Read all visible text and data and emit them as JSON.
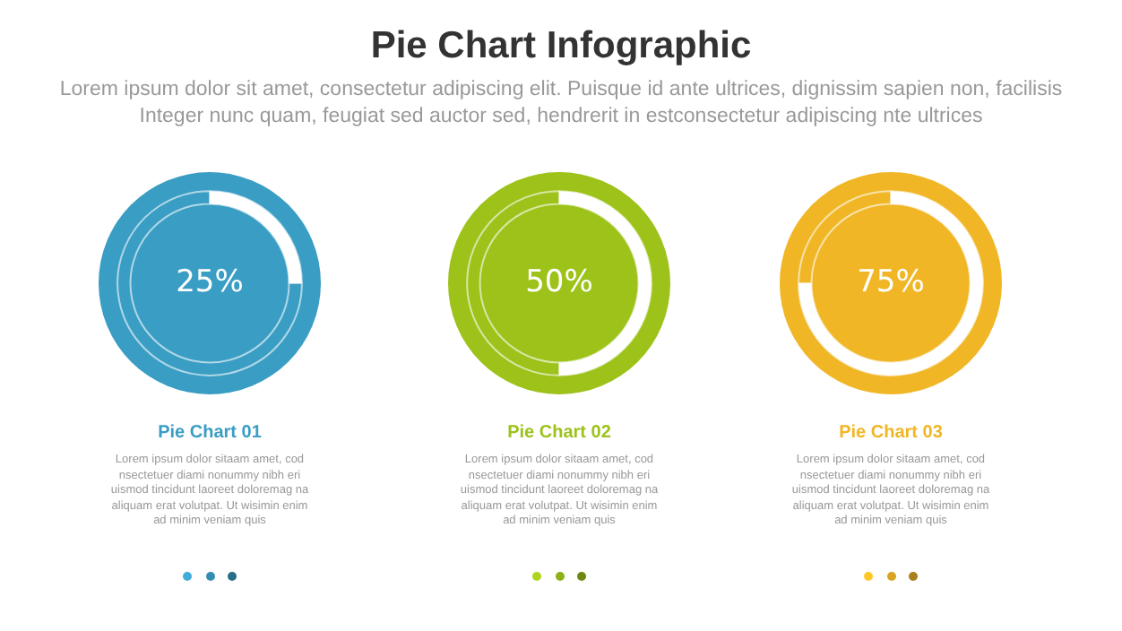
{
  "chart_data": [
    {
      "type": "other",
      "title": "Pie Chart Infographic",
      "subtitle": "Lorem ipsum dolor sit amet, consectetur adipiscing elit. Puisque id ante ultrices, dignissim sapien non, facilisis Integer nunc quam, feugiat sed auctor sed, hendrerit in estconsectetur adipiscing nte ultrices"
    },
    {
      "type": "donut",
      "title": "Pie Chart 01",
      "categories": [
        null,
        null
      ],
      "values": [
        25,
        75
      ],
      "colors": [
        "#ffffff",
        "#3a9dc4"
      ],
      "value_labels": [
        "25%",
        null
      ],
      "annotations": [
        "Lorem ipsum dolor sitaam amet, cod nsectetuer diami nonummy nibh eri uismod tincidunt laoreet doloremag na aliquam erat volutpat. Ut wisimin enim ad minim veniam quis"
      ]
    },
    {
      "type": "donut",
      "title": "Pie Chart 02",
      "categories": [
        null,
        null
      ],
      "values": [
        50,
        50
      ],
      "colors": [
        "#ffffff",
        "#9dc21a"
      ],
      "value_labels": [
        "50%",
        null
      ],
      "annotations": [
        "Lorem ipsum dolor sitaam amet, cod nsectetuer diami nonummy nibh eri uismod tincidunt laoreet doloremag na aliquam erat volutpat. Ut wisimin enim ad minim veniam quis"
      ]
    },
    {
      "type": "donut",
      "title": "Pie Chart 03",
      "categories": [
        null,
        null
      ],
      "values": [
        75,
        25
      ],
      "colors": [
        "#ffffff",
        "#f0b625"
      ],
      "value_labels": [
        "75%",
        null
      ],
      "annotations": [
        "Lorem ipsum dolor sitaam amet, cod nsectetuer diami nonummy nibh eri uismod tincidunt laoreet doloremag na aliquam erat volutpat. Ut wisimin enim ad minim veniam quis"
      ]
    }
  ]
}
